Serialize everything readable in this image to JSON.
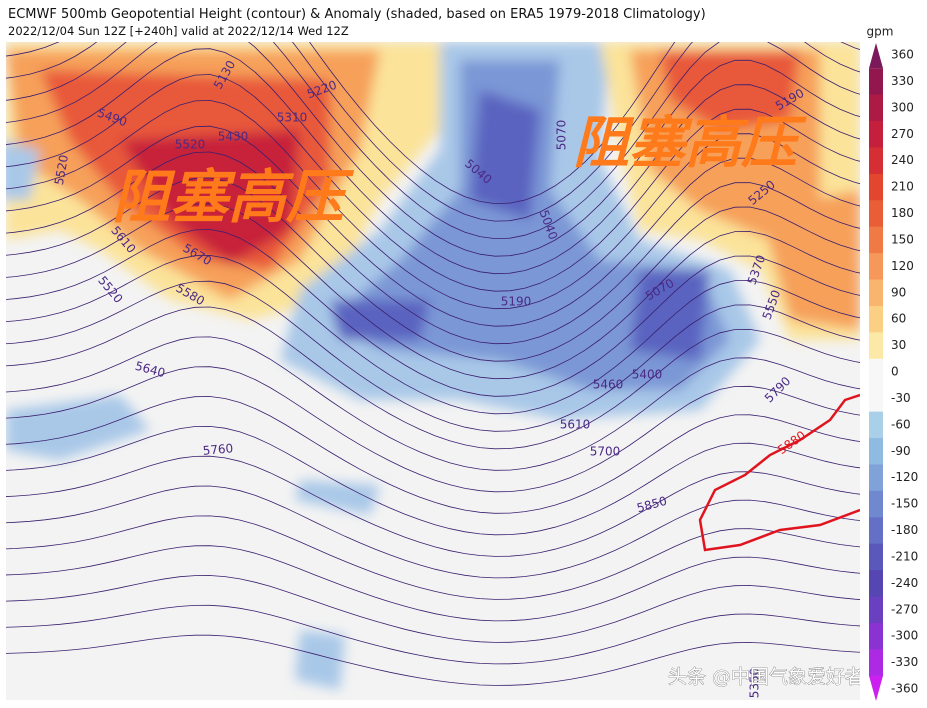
{
  "header": {
    "title": "ECMWF 500mb Geopotential Height (contour) & Anomaly (shaded, based on ERA5 1979-2018 Climatology)",
    "subtitle": "2022/12/04 Sun 12Z [+240h] valid at 2022/12/14 Wed 12Z"
  },
  "colorbar": {
    "unit": "gpm",
    "labels": [
      360,
      330,
      300,
      270,
      240,
      210,
      180,
      150,
      120,
      90,
      60,
      30,
      0,
      -30,
      -60,
      -90,
      -120,
      -150,
      -180,
      -210,
      -240,
      -270,
      -300,
      -330,
      -360
    ],
    "colors": [
      "#7a1a5a",
      "#93174f",
      "#ad1a44",
      "#c41f3c",
      "#d52f35",
      "#e2462f",
      "#ea5e37",
      "#f07a45",
      "#f6985a",
      "#f9b46e",
      "#fbd084",
      "#fce9a8",
      "#f7f7f7",
      "#f7f7f7",
      "#a9d0e8",
      "#8fbbe0",
      "#7fa2d8",
      "#7088cf",
      "#6470c5",
      "#5a58bb",
      "#5546b2",
      "#6a3fc0",
      "#8a33d2",
      "#ad2ae4",
      "#cc20f0"
    ]
  },
  "contour_labels": [
    5130,
    5220,
    5310,
    5490,
    5520,
    5430,
    5520,
    5040,
    5070,
    5040,
    5190,
    5250,
    5370,
    5550,
    5670,
    5610,
    5580,
    5520,
    5640,
    5190,
    5070,
    5460,
    5400,
    5760,
    5610,
    5700,
    5850,
    5790,
    5880,
    5350
  ],
  "annotations": [
    "阻塞高压",
    "阻塞高压"
  ],
  "watermark": "头条 @中国气象爱好者"
}
